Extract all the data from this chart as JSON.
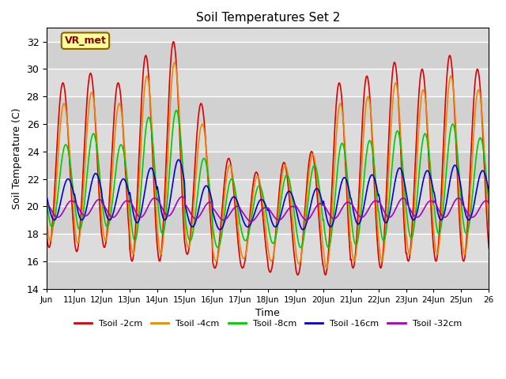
{
  "title": "Soil Temperatures Set 2",
  "xlabel": "Time",
  "ylabel": "Soil Temperature (C)",
  "ylim": [
    14,
    33
  ],
  "yticks": [
    14,
    16,
    18,
    20,
    22,
    24,
    26,
    28,
    30,
    32
  ],
  "x_tick_labels": [
    "Jun",
    "11Jun",
    "12Jun",
    "13Jun",
    "14Jun",
    "15Jun",
    "16Jun",
    "17Jun",
    "18Jun",
    "19Jun",
    "20Jun",
    "21Jun",
    "22Jun",
    "23Jun",
    "24Jun",
    "25Jun",
    "26"
  ],
  "colors": {
    "Tsoil -2cm": "#dd0000",
    "Tsoil -4cm": "#ee8800",
    "Tsoil -8cm": "#00cc00",
    "Tsoil -16cm": "#0000dd",
    "Tsoil -32cm": "#aa00bb"
  },
  "line_width": 1.2,
  "annotation_text": "VR_met",
  "bg_color": "#dcdcdc",
  "n_days": 16,
  "daily_means_2cm": [
    23.0,
    23.2,
    23.0,
    23.5,
    24.0,
    22.0,
    19.5,
    19.0,
    19.2,
    19.5,
    22.0,
    22.5,
    23.0,
    23.0,
    23.5,
    23.0
  ],
  "daily_amps_2cm": [
    6.0,
    6.5,
    6.0,
    7.5,
    8.0,
    5.5,
    4.0,
    3.5,
    4.0,
    4.5,
    7.0,
    7.0,
    7.5,
    7.0,
    7.5,
    7.0
  ],
  "daily_means_4cm": [
    22.5,
    22.8,
    22.5,
    23.0,
    23.5,
    21.5,
    19.5,
    19.2,
    19.5,
    19.8,
    21.5,
    22.0,
    22.5,
    22.5,
    23.0,
    22.5
  ],
  "daily_amps_4cm": [
    5.0,
    5.5,
    5.0,
    6.5,
    7.0,
    4.5,
    3.5,
    3.0,
    3.5,
    4.0,
    6.0,
    6.0,
    6.5,
    6.0,
    6.5,
    6.0
  ],
  "daily_means_8cm": [
    21.5,
    21.8,
    21.5,
    22.0,
    22.5,
    20.5,
    19.5,
    19.5,
    19.8,
    20.0,
    20.8,
    21.0,
    21.5,
    21.5,
    22.0,
    21.5
  ],
  "daily_amps_8cm": [
    3.0,
    3.5,
    3.0,
    4.5,
    4.5,
    3.0,
    2.5,
    2.0,
    2.5,
    3.0,
    3.8,
    3.8,
    4.0,
    3.8,
    4.0,
    3.5
  ],
  "daily_means_16cm": [
    20.5,
    20.7,
    20.5,
    20.8,
    21.2,
    20.0,
    19.5,
    19.5,
    19.8,
    19.8,
    20.3,
    20.5,
    20.8,
    20.8,
    21.0,
    20.8
  ],
  "daily_amps_16cm": [
    1.5,
    1.7,
    1.5,
    2.0,
    2.2,
    1.5,
    1.2,
    1.0,
    1.3,
    1.5,
    1.8,
    1.8,
    2.0,
    1.8,
    2.0,
    1.8
  ],
  "daily_means_32cm": [
    19.8,
    19.9,
    19.8,
    19.9,
    20.0,
    19.7,
    19.5,
    19.4,
    19.5,
    19.6,
    19.7,
    19.8,
    19.9,
    19.8,
    19.9,
    19.8
  ],
  "daily_amps_32cm": [
    0.6,
    0.6,
    0.6,
    0.7,
    0.7,
    0.6,
    0.5,
    0.5,
    0.5,
    0.6,
    0.6,
    0.6,
    0.7,
    0.6,
    0.7,
    0.6
  ],
  "phase_delays_hours": [
    14.0,
    15.0,
    16.5,
    18.5,
    21.5
  ]
}
